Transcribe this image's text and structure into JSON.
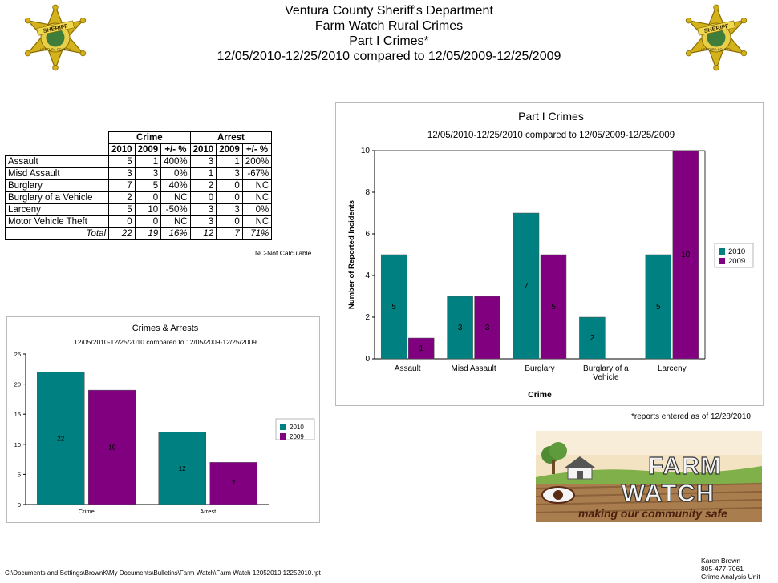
{
  "header": {
    "line1": "Ventura County Sheriff's Department",
    "line2": "Farm Watch Rural Crimes",
    "line3": "Part I Crimes*",
    "line4": "12/05/2010-12/25/2010 compared to 12/05/2009-12/25/2009"
  },
  "badge": {
    "text": "SHERIFF",
    "ring_text": "VENTURA COUNTY"
  },
  "table": {
    "group_headers": [
      "Crime",
      "Arrest"
    ],
    "sub_headers": [
      "2010",
      "2009",
      "+/- %",
      "2010",
      "2009",
      "+/- %"
    ],
    "rows": [
      {
        "label": "Assault",
        "cells": [
          "5",
          "1",
          "400%",
          "3",
          "1",
          "200%"
        ]
      },
      {
        "label": "Misd  Assault",
        "cells": [
          "3",
          "3",
          "0%",
          "1",
          "3",
          "-67%"
        ]
      },
      {
        "label": "Burglary",
        "cells": [
          "7",
          "5",
          "40%",
          "2",
          "0",
          "NC"
        ]
      },
      {
        "label": "Burglary of a Vehicle",
        "cells": [
          "2",
          "0",
          "NC",
          "0",
          "0",
          "NC"
        ]
      },
      {
        "label": "Larceny",
        "cells": [
          "5",
          "10",
          "-50%",
          "3",
          "3",
          "0%"
        ]
      },
      {
        "label": "Motor Vehicle Theft",
        "cells": [
          "0",
          "0",
          "NC",
          "3",
          "0",
          "NC"
        ]
      }
    ],
    "total": {
      "label": "Total",
      "cells": [
        "22",
        "19",
        "16%",
        "12",
        "7",
        "71%"
      ]
    },
    "note": "NC-Not Calculable"
  },
  "reports_note": "*reports entered as of 12/28/2010",
  "chart_data": [
    {
      "type": "bar",
      "title": "Part I Crimes",
      "subtitle": "12/05/2010-12/25/2010 compared to 12/05/2009-12/25/2009",
      "xlabel": "Crime",
      "ylabel": "Number of Reported Incidents",
      "categories": [
        "Assault",
        "Misd  Assault",
        "Burglary",
        "Burglary of a Vehicle",
        "Larceny"
      ],
      "series": [
        {
          "name": "2010",
          "values": [
            5,
            3,
            7,
            2,
            5
          ],
          "color": "#008080"
        },
        {
          "name": "2009",
          "values": [
            1,
            3,
            5,
            0,
            10
          ],
          "color": "#800080"
        }
      ],
      "ylim": [
        0,
        10
      ],
      "yticks": [
        0,
        2,
        4,
        6,
        8,
        10
      ],
      "grid": false,
      "legend": "right"
    },
    {
      "type": "bar",
      "title": "Crimes & Arrests",
      "subtitle": "12/05/2010-12/25/2010 compared to 12/05/2009-12/25/2009",
      "xlabel": "",
      "ylabel": "",
      "categories": [
        "Crime",
        "Arrest"
      ],
      "series": [
        {
          "name": "2010",
          "values": [
            22,
            12
          ],
          "color": "#008080"
        },
        {
          "name": "2009",
          "values": [
            19,
            7
          ],
          "color": "#800080"
        }
      ],
      "ylim": [
        0,
        25
      ],
      "yticks": [
        0,
        5,
        10,
        15,
        20,
        25
      ],
      "grid": false,
      "legend": "right"
    }
  ],
  "logo": {
    "line1": "FARM",
    "line2": "WATCH",
    "tagline": "making our community safe"
  },
  "footer": {
    "path": "C:\\Documents and Settings\\BrownK\\My Documents\\Bulletins\\Farm Watch\\Farm Watch 12052010 12252010.rpt",
    "contact": [
      "Karen Brown",
      "805-477-7061",
      "Crime Analysis Unit"
    ]
  }
}
